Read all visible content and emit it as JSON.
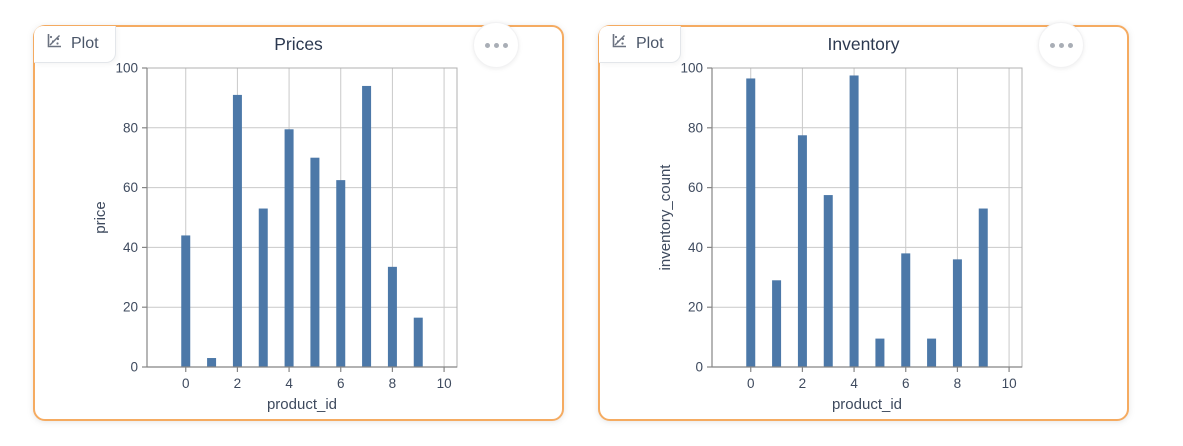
{
  "panels": [
    {
      "badge_label": "Plot",
      "title": "Prices"
    },
    {
      "badge_label": "Plot",
      "title": "Inventory"
    }
  ],
  "colors": {
    "card_border": "#f5ab61",
    "bar": "#4c78a8",
    "grid": "#c9c9c9",
    "plot_border": "#b0b0b0",
    "axis": "#858585",
    "tick_text": "#3e4a5e",
    "axis_title_text": "#3e4a5e",
    "title_text": "#2c3950"
  },
  "chart_data": [
    {
      "type": "bar",
      "title": "Prices",
      "x": [
        0,
        1,
        2,
        3,
        4,
        5,
        6,
        7,
        8,
        9
      ],
      "values": [
        44,
        3,
        91,
        53,
        79.5,
        70,
        62.5,
        94,
        33.5,
        16.5
      ],
      "xlabel": "product_id",
      "ylabel": "price",
      "xlim": [
        -1.5,
        10.5
      ],
      "ylim": [
        0,
        100
      ],
      "xticks": [
        0,
        2,
        4,
        6,
        8,
        10
      ],
      "yticks": [
        0,
        20,
        40,
        60,
        80,
        100
      ],
      "grid": true,
      "legend": "none",
      "bar_color": "#4c78a8"
    },
    {
      "type": "bar",
      "title": "Inventory",
      "x": [
        0,
        1,
        2,
        3,
        4,
        5,
        6,
        7,
        8,
        9
      ],
      "values": [
        96.5,
        29,
        77.5,
        57.5,
        97.5,
        9.5,
        38,
        9.5,
        36,
        53
      ],
      "xlabel": "product_id",
      "ylabel": "inventory_count",
      "xlim": [
        -1.5,
        10.5
      ],
      "ylim": [
        0,
        100
      ],
      "xticks": [
        0,
        2,
        4,
        6,
        8,
        10
      ],
      "yticks": [
        0,
        20,
        40,
        60,
        80,
        100
      ],
      "grid": true,
      "legend": "none",
      "bar_color": "#4c78a8"
    }
  ]
}
